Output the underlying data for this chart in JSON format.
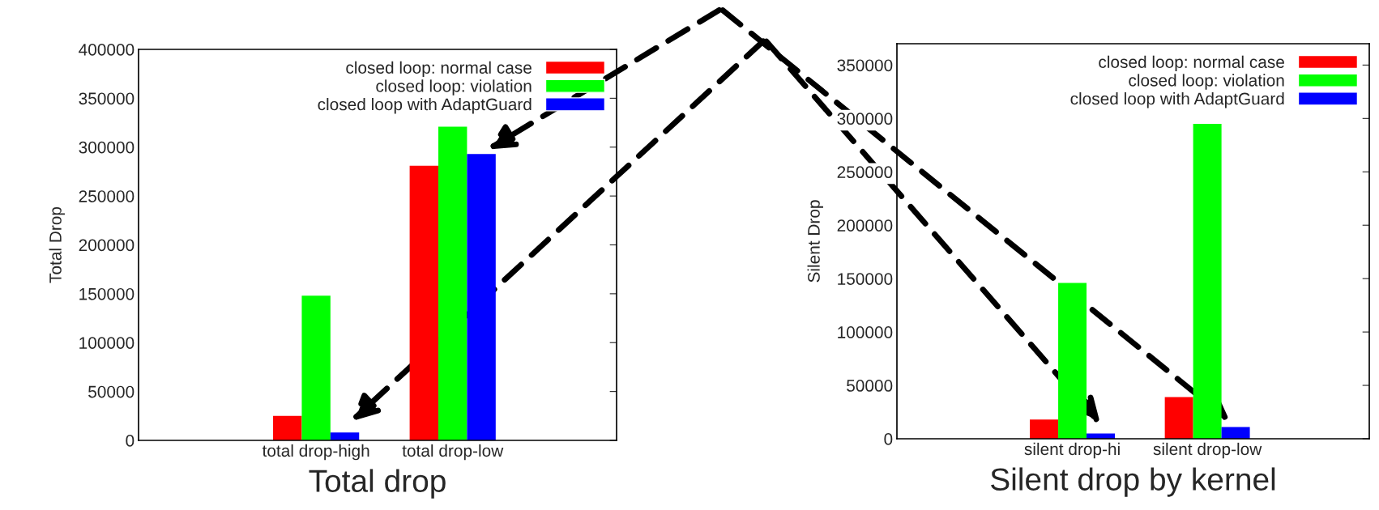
{
  "chart_data": [
    {
      "type": "bar",
      "xlabel": "Total drop",
      "ylabel": "Total Drop",
      "categories": [
        "total drop-high",
        "total drop-low"
      ],
      "series": [
        {
          "name": "closed loop: normal case",
          "color": "#ff0000",
          "values": [
            25000,
            281000
          ]
        },
        {
          "name": "closed loop: violation",
          "color": "#00ff00",
          "values": [
            148000,
            321000
          ]
        },
        {
          "name": "closed loop with AdaptGuard",
          "color": "#0000ff",
          "values": [
            8000,
            293000
          ]
        }
      ],
      "ylim": [
        0,
        400000
      ],
      "yticks": [
        0,
        50000,
        100000,
        150000,
        200000,
        250000,
        300000,
        350000,
        400000
      ],
      "legend": "top right",
      "grid": false
    },
    {
      "type": "bar",
      "xlabel": "Silent drop by kernel",
      "ylabel": "Silent Drop",
      "categories": [
        "silent drop-hi",
        "silent drop-low"
      ],
      "series": [
        {
          "name": "closed loop: normal case",
          "color": "#ff0000",
          "values": [
            18000,
            39000
          ]
        },
        {
          "name": "closed loop: violation",
          "color": "#00ff00",
          "values": [
            146000,
            295000
          ]
        },
        {
          "name": "closed loop with AdaptGuard",
          "color": "#0000ff",
          "values": [
            5000,
            11000
          ]
        }
      ],
      "ylim": [
        0,
        370000
      ],
      "yticks": [
        0,
        50000,
        100000,
        150000,
        200000,
        250000,
        300000,
        350000
      ],
      "legend": "top right",
      "grid": false
    }
  ]
}
